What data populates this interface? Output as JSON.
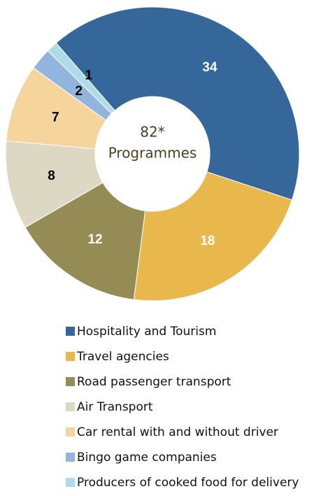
{
  "chart_data": {
    "type": "donut",
    "center_lines": [
      "82*",
      "Programmes"
    ],
    "categories": [
      "Hospitality and Tourism",
      "Travel agencies",
      "Road passenger transport",
      "Air Transport",
      "Car rental with and without driver",
      "Bingo game companies",
      "Producers of cooked food for delivery"
    ],
    "values": [
      34,
      18,
      12,
      8,
      7,
      2,
      1
    ],
    "colors": [
      "#35679a",
      "#e9b84d",
      "#958b54",
      "#ddd8c4",
      "#f5d59c",
      "#93b5dd",
      "#addce7"
    ],
    "label_colors": [
      "#ffffff",
      "#ffffff",
      "#ffffff",
      "#000000",
      "#000000",
      "#000000",
      "#000000"
    ],
    "legend": "bottom"
  }
}
